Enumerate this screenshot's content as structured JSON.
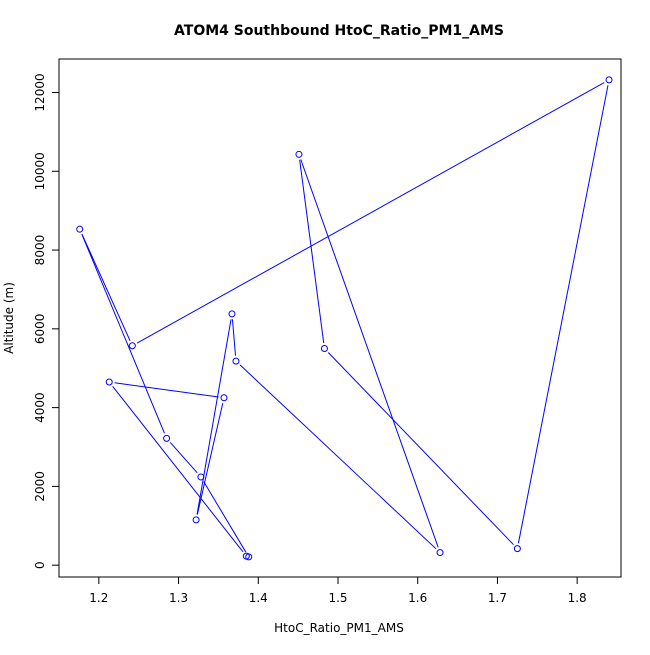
{
  "chart_data": {
    "type": "line",
    "title": "ATOM4 Southbound HtoC_Ratio_PM1_AMS",
    "xlabel": "HtoC_Ratio_PM1_AMS",
    "ylabel": "Altitude (m)",
    "xlim": [
      1.15,
      1.855
    ],
    "ylim": [
      -300,
      12850
    ],
    "x_ticks": [
      1.2,
      1.3,
      1.4,
      1.5,
      1.6,
      1.7,
      1.8
    ],
    "x_tick_labels": [
      "1.2",
      "1.3",
      "1.4",
      "1.5",
      "1.6",
      "1.7",
      "1.8"
    ],
    "y_ticks": [
      0,
      2000,
      4000,
      6000,
      8000,
      10000,
      12000
    ],
    "y_tick_labels": [
      "0",
      "2000",
      "4000",
      "6000",
      "8000",
      "10000",
      "12000"
    ],
    "grid": false,
    "line_style": "both points and lines",
    "color": "#0000ff",
    "series": [
      {
        "x": [
          1.385,
          1.213,
          1.357,
          1.322,
          1.367,
          1.372,
          1.628,
          1.451,
          1.483,
          1.725,
          1.84,
          1.242,
          1.176,
          1.285,
          1.328,
          1.388
        ],
        "y": [
          230,
          4650,
          4250,
          1150,
          6380,
          5180,
          320,
          10430,
          5500,
          420,
          12320,
          5570,
          8530,
          3220,
          2240,
          210
        ]
      }
    ]
  }
}
